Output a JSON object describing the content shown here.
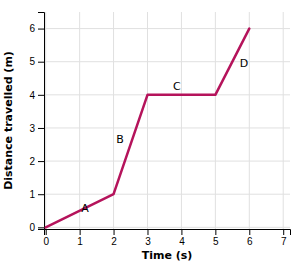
{
  "chart_data": {
    "type": "line",
    "x": [
      0,
      2,
      3,
      5,
      6
    ],
    "values": [
      0,
      1,
      4,
      4,
      6
    ],
    "color": "#b5135b",
    "x_label": "Time (s)",
    "y_label": "Distance travelled (m)",
    "xlim": [
      -0.05,
      7.2
    ],
    "ylim": [
      -0.05,
      6.5
    ],
    "xticks": [
      0,
      1,
      2,
      3,
      4,
      5,
      6,
      7
    ],
    "yticks": [
      0,
      1,
      2,
      3,
      4,
      5,
      6
    ],
    "grid": true,
    "annotations": [
      {
        "text": "A",
        "x": 1.05,
        "y": 0.45
      },
      {
        "text": "B",
        "x": 2.08,
        "y": 2.55
      },
      {
        "text": "C",
        "x": 3.75,
        "y": 4.15
      },
      {
        "text": "D",
        "x": 5.72,
        "y": 4.85
      }
    ]
  }
}
